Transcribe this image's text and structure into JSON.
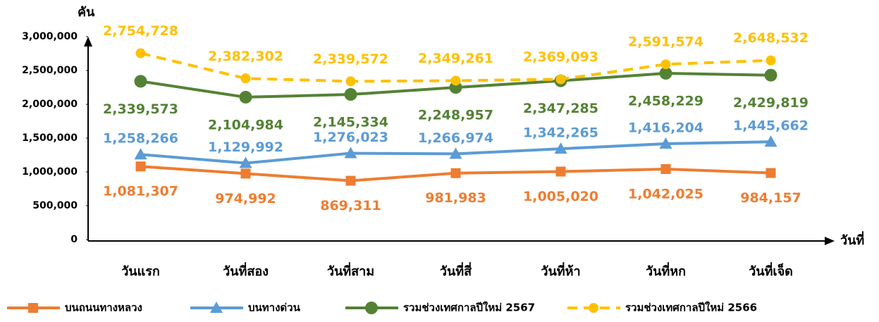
{
  "chart_data": {
    "type": "line",
    "y_label": "คัน",
    "x_label": "วันที่",
    "categories": [
      "วันแรก",
      "วันที่สอง",
      "วันที่สาม",
      "วันที่สี่",
      "วันที่ห้า",
      "วันที่หก",
      "วันที่เจ็ด"
    ],
    "series": [
      {
        "name": "บนถนนทางหลวง",
        "color": "#ed7d31",
        "marker": "square",
        "dashed": false,
        "values": [
          1081307,
          974992,
          869311,
          981983,
          1005020,
          1042025,
          984157
        ],
        "value_labels": [
          "1,081,307",
          "974,992",
          "869,311",
          "981,983",
          "1,005,020",
          "1,042,025",
          "984,157"
        ]
      },
      {
        "name": "บนทางด่วน",
        "color": "#5b9bd5",
        "marker": "triangle",
        "dashed": false,
        "values": [
          1258266,
          1129992,
          1276023,
          1266974,
          1342265,
          1416204,
          1445662
        ],
        "value_labels": [
          "1,258,266",
          "1,129,992",
          "1,276,023",
          "1,266,974",
          "1,342,265",
          "1,416,204",
          "1,445,662"
        ]
      },
      {
        "name": "รวมช่วงเทศกาลปีใหม่ 2567",
        "color": "#548235",
        "marker": "circle",
        "dashed": false,
        "values": [
          2339573,
          2104984,
          2145334,
          2248957,
          2347285,
          2458229,
          2429819
        ],
        "value_labels": [
          "2,339,573",
          "2,104,984",
          "2,145,334",
          "2,248,957",
          "2,347,285",
          "2,458,229",
          "2,429,819"
        ]
      },
      {
        "name": "รวมช่วงเทศกาลปีใหม่ 2566",
        "color": "#ffc000",
        "marker": "circle",
        "dashed": true,
        "values": [
          2754728,
          2382302,
          2339572,
          2349261,
          2369093,
          2591574,
          2648532
        ],
        "value_labels": [
          "2,754,728",
          "2,382,302",
          "2,339,572",
          "2,349,261",
          "2,369,093",
          "2,591,574",
          "2,648,532"
        ]
      }
    ],
    "ylim": [
      0,
      3000000
    ],
    "yticks": [
      0,
      {
        "value": 500000,
        "label": "500,000"
      },
      {
        "value": 1000000,
        "label": "1,000,000"
      },
      {
        "value": 1500000,
        "label": "1,500,000"
      },
      {
        "value": 2000000,
        "label": "2,000,000"
      },
      {
        "value": 2500000,
        "label": "2,500,000"
      },
      {
        "value": 3000000,
        "label": "3,000,000"
      }
    ],
    "grid": false
  }
}
